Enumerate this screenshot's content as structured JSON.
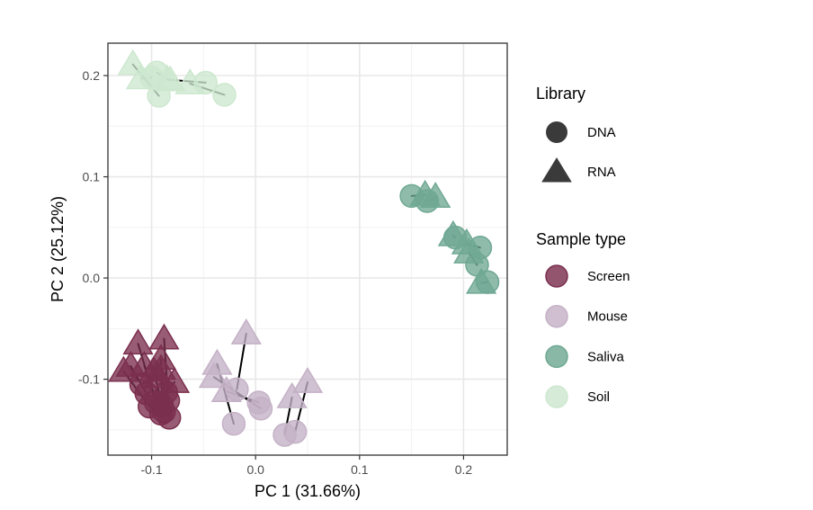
{
  "chart_data": {
    "type": "scatter",
    "xlabel": "PC 1 (31.66%)",
    "ylabel": "PC 2 (25.12%)",
    "xlim": [
      -0.142,
      0.242
    ],
    "ylim": [
      -0.175,
      0.232
    ],
    "x_ticks": [
      -0.1,
      0.0,
      0.1,
      0.2
    ],
    "x_tick_labels": [
      "-0.1",
      "0.0",
      "0.1",
      "0.2"
    ],
    "y_ticks": [
      -0.1,
      0.0,
      0.1,
      0.2
    ],
    "y_tick_labels": [
      "-0.1",
      "0.0",
      "0.1",
      "0.2"
    ],
    "grid": true,
    "legend_position": "right",
    "legends": [
      {
        "title": "Library",
        "items": [
          {
            "label": "DNA",
            "shape": "circle"
          },
          {
            "label": "RNA",
            "shape": "triangle"
          }
        ]
      },
      {
        "title": "Sample type",
        "items": [
          {
            "label": "Screen",
            "color": "#7b2f4e"
          },
          {
            "label": "Mouse",
            "color": "#c4b1c6"
          },
          {
            "label": "Saliva",
            "color": "#6fa894"
          },
          {
            "label": "Soil",
            "color": "#cde8cf"
          }
        ]
      }
    ],
    "colors": {
      "Screen": "#7b2f4e",
      "Mouse": "#c4b1c6",
      "Saliva": "#6fa894",
      "Soil": "#cde8cf"
    },
    "pairs": [
      {
        "type": "Soil",
        "dna": [
          -0.093,
          0.18
        ],
        "rna": [
          -0.118,
          0.211
        ]
      },
      {
        "type": "Soil",
        "dna": [
          -0.03,
          0.181
        ],
        "rna": [
          -0.063,
          0.192
        ]
      },
      {
        "type": "Soil",
        "dna": [
          -0.095,
          0.203
        ],
        "rna": [
          -0.082,
          0.195
        ]
      },
      {
        "type": "Soil",
        "dna": [
          -0.048,
          0.193
        ],
        "rna": [
          -0.085,
          0.196
        ]
      },
      {
        "type": "Soil",
        "dna": [
          -0.1,
          0.198
        ],
        "rna": [
          -0.11,
          0.197
        ]
      },
      {
        "type": "Saliva",
        "dna": [
          0.15,
          0.081
        ],
        "rna": [
          0.163,
          0.082
        ]
      },
      {
        "type": "Saliva",
        "dna": [
          0.165,
          0.076
        ],
        "rna": [
          0.173,
          0.08
        ]
      },
      {
        "type": "Saliva",
        "dna": [
          0.216,
          0.03
        ],
        "rna": [
          0.203,
          0.034
        ]
      },
      {
        "type": "Saliva",
        "dna": [
          0.213,
          0.013
        ],
        "rna": [
          0.205,
          0.025
        ]
      },
      {
        "type": "Saliva",
        "dna": [
          0.192,
          0.04
        ],
        "rna": [
          0.19,
          0.042
        ]
      },
      {
        "type": "Saliva",
        "dna": [
          0.223,
          -0.004
        ],
        "rna": [
          0.217,
          -0.005
        ]
      },
      {
        "type": "Mouse",
        "dna": [
          -0.021,
          -0.144
        ],
        "rna": [
          -0.037,
          -0.085
        ]
      },
      {
        "type": "Mouse",
        "dna": [
          -0.018,
          -0.11
        ],
        "rna": [
          -0.009,
          -0.055
        ]
      },
      {
        "type": "Mouse",
        "dna": [
          0.005,
          -0.129
        ],
        "rna": [
          -0.04,
          -0.098
        ]
      },
      {
        "type": "Mouse",
        "dna": [
          0.028,
          -0.155
        ],
        "rna": [
          0.035,
          -0.118
        ]
      },
      {
        "type": "Mouse",
        "dna": [
          0.038,
          -0.152
        ],
        "rna": [
          0.05,
          -0.103
        ]
      },
      {
        "type": "Mouse",
        "dna": [
          0.003,
          -0.123
        ],
        "rna": [
          -0.028,
          -0.112
        ]
      },
      {
        "type": "Screen",
        "dna": [
          -0.102,
          -0.127
        ],
        "rna": [
          -0.127,
          -0.092
        ]
      },
      {
        "type": "Screen",
        "dna": [
          -0.096,
          -0.123
        ],
        "rna": [
          -0.113,
          -0.065
        ]
      },
      {
        "type": "Screen",
        "dna": [
          -0.091,
          -0.134
        ],
        "rna": [
          -0.107,
          -0.087
        ]
      },
      {
        "type": "Screen",
        "dna": [
          -0.083,
          -0.138
        ],
        "rna": [
          -0.091,
          -0.09
        ]
      },
      {
        "type": "Screen",
        "dna": [
          -0.09,
          -0.126
        ],
        "rna": [
          -0.091,
          -0.08
        ]
      },
      {
        "type": "Screen",
        "dna": [
          -0.105,
          -0.114
        ],
        "rna": [
          -0.12,
          -0.087
        ]
      },
      {
        "type": "Screen",
        "dna": [
          -0.084,
          -0.121
        ],
        "rna": [
          -0.088,
          -0.06
        ]
      },
      {
        "type": "Screen",
        "dna": [
          -0.086,
          -0.113
        ],
        "rna": [
          -0.078,
          -0.103
        ]
      },
      {
        "type": "Screen",
        "dna": [
          -0.11,
          -0.105
        ],
        "rna": [
          -0.093,
          -0.098
        ]
      },
      {
        "type": "Screen",
        "dna": [
          -0.088,
          -0.132
        ],
        "rna": [
          -0.098,
          -0.092
        ]
      }
    ]
  }
}
